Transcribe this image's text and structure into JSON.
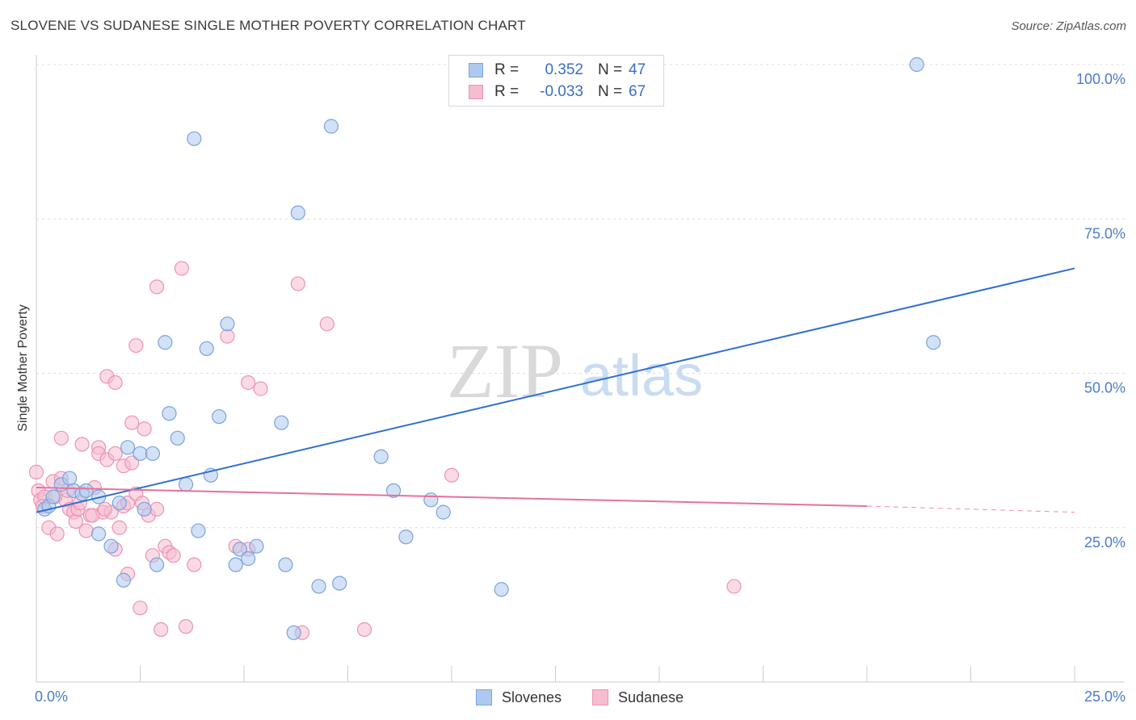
{
  "title": "SLOVENE VS SUDANESE SINGLE MOTHER POVERTY CORRELATION CHART",
  "source": "Source: ZipAtlas.com",
  "watermark": {
    "zip": "ZIP",
    "atlas": "atlas"
  },
  "colors": {
    "slovene_fill": "#aec9ef",
    "slovene_stroke": "#7aa3dd",
    "slovene_line": "#2f6fd0",
    "sudanese_fill": "#f6bcd0",
    "sudanese_stroke": "#ec94b3",
    "sudanese_line": "#e8709a",
    "axis_text": "#4a7cc9"
  },
  "legend": {
    "rows": [
      {
        "r_label": "R =",
        "r_value": "0.352",
        "n_label": "N =",
        "n_value": "47"
      },
      {
        "r_label": "R =",
        "r_value": "-0.033",
        "n_label": "N =",
        "n_value": "67"
      }
    ]
  },
  "bottom_legend": {
    "slovenes": "Slovenes",
    "sudanese": "Sudanese"
  },
  "chart_data": {
    "type": "scatter",
    "title": "SLOVENE VS SUDANESE SINGLE MOTHER POVERTY CORRELATION CHART",
    "xlabel": "",
    "ylabel": "Single Mother Poverty",
    "xlim": [
      0,
      25
    ],
    "ylim": [
      0,
      100
    ],
    "x_tick_labels": [
      "0.0%",
      "25.0%"
    ],
    "y_ticks": [
      25,
      50,
      75,
      100
    ],
    "y_tick_labels": [
      "25.0%",
      "50.0%",
      "75.0%",
      "100.0%"
    ],
    "series": [
      {
        "name": "Slovenes",
        "points": [
          [
            0.2,
            28
          ],
          [
            0.3,
            28.5
          ],
          [
            0.4,
            30
          ],
          [
            0.6,
            32
          ],
          [
            0.8,
            33
          ],
          [
            0.9,
            31
          ],
          [
            1.1,
            30.5
          ],
          [
            1.2,
            31
          ],
          [
            1.5,
            30
          ],
          [
            1.5,
            24
          ],
          [
            1.8,
            22
          ],
          [
            2.0,
            29
          ],
          [
            2.1,
            16.5
          ],
          [
            2.2,
            38
          ],
          [
            2.5,
            37
          ],
          [
            2.6,
            28
          ],
          [
            2.8,
            37
          ],
          [
            2.9,
            19
          ],
          [
            3.1,
            55
          ],
          [
            3.2,
            43.5
          ],
          [
            3.4,
            39.5
          ],
          [
            3.6,
            32
          ],
          [
            3.8,
            88
          ],
          [
            3.9,
            24.5
          ],
          [
            4.1,
            54
          ],
          [
            4.2,
            33.5
          ],
          [
            4.4,
            43
          ],
          [
            4.6,
            58
          ],
          [
            4.8,
            19
          ],
          [
            4.9,
            21.5
          ],
          [
            5.1,
            20
          ],
          [
            5.3,
            22
          ],
          [
            5.9,
            42
          ],
          [
            6.0,
            19
          ],
          [
            6.2,
            8
          ],
          [
            6.3,
            76
          ],
          [
            6.8,
            15.5
          ],
          [
            7.1,
            90
          ],
          [
            7.3,
            16
          ],
          [
            8.3,
            36.5
          ],
          [
            8.6,
            31
          ],
          [
            8.9,
            23.5
          ],
          [
            9.5,
            29.5
          ],
          [
            9.8,
            27.5
          ],
          [
            11.2,
            15
          ],
          [
            21.2,
            100
          ],
          [
            21.6,
            55
          ]
        ],
        "trend": {
          "x": [
            0,
            25
          ],
          "y": [
            27.5,
            67
          ]
        }
      },
      {
        "name": "Sudanese",
        "points": [
          [
            0.0,
            34
          ],
          [
            0.05,
            31
          ],
          [
            0.1,
            29.5
          ],
          [
            0.2,
            30
          ],
          [
            0.3,
            25
          ],
          [
            0.4,
            32.5
          ],
          [
            0.5,
            24
          ],
          [
            0.6,
            33
          ],
          [
            0.6,
            39.5
          ],
          [
            0.7,
            29.5
          ],
          [
            0.8,
            28
          ],
          [
            0.9,
            27.5
          ],
          [
            0.95,
            26
          ],
          [
            1.0,
            28
          ],
          [
            1.1,
            38.5
          ],
          [
            1.2,
            24.5
          ],
          [
            1.3,
            27
          ],
          [
            1.4,
            31.5
          ],
          [
            1.5,
            38
          ],
          [
            1.5,
            37
          ],
          [
            1.6,
            27.5
          ],
          [
            1.7,
            49.5
          ],
          [
            1.7,
            36
          ],
          [
            1.8,
            27.5
          ],
          [
            1.9,
            48.5
          ],
          [
            1.9,
            37
          ],
          [
            1.9,
            21.5
          ],
          [
            2.0,
            25
          ],
          [
            2.1,
            28.5
          ],
          [
            2.1,
            35
          ],
          [
            2.2,
            29
          ],
          [
            2.2,
            17.5
          ],
          [
            2.3,
            42
          ],
          [
            2.3,
            35.5
          ],
          [
            2.4,
            30.5
          ],
          [
            2.4,
            54.5
          ],
          [
            2.5,
            12
          ],
          [
            2.6,
            41
          ],
          [
            2.7,
            27
          ],
          [
            2.8,
            20.5
          ],
          [
            2.9,
            64
          ],
          [
            2.9,
            28
          ],
          [
            3.0,
            8.5
          ],
          [
            3.1,
            22
          ],
          [
            3.2,
            21
          ],
          [
            3.3,
            20.5
          ],
          [
            3.5,
            67
          ],
          [
            3.6,
            9
          ],
          [
            3.8,
            19
          ],
          [
            4.6,
            56
          ],
          [
            4.8,
            22
          ],
          [
            5.1,
            21.5
          ],
          [
            5.1,
            48.5
          ],
          [
            5.4,
            47.5
          ],
          [
            6.3,
            64.5
          ],
          [
            6.4,
            8
          ],
          [
            7.0,
            58
          ],
          [
            7.9,
            8.5
          ],
          [
            10.0,
            33.5
          ],
          [
            16.8,
            15.5
          ],
          [
            0.15,
            28.5
          ],
          [
            0.45,
            30
          ],
          [
            0.75,
            31
          ],
          [
            1.05,
            29
          ],
          [
            1.35,
            27
          ],
          [
            1.65,
            28
          ],
          [
            2.55,
            29
          ]
        ],
        "trend": {
          "x": [
            0,
            20,
            25
          ],
          "y": [
            31.5,
            28.5,
            27.5
          ],
          "dashed_from": 20
        }
      }
    ]
  }
}
